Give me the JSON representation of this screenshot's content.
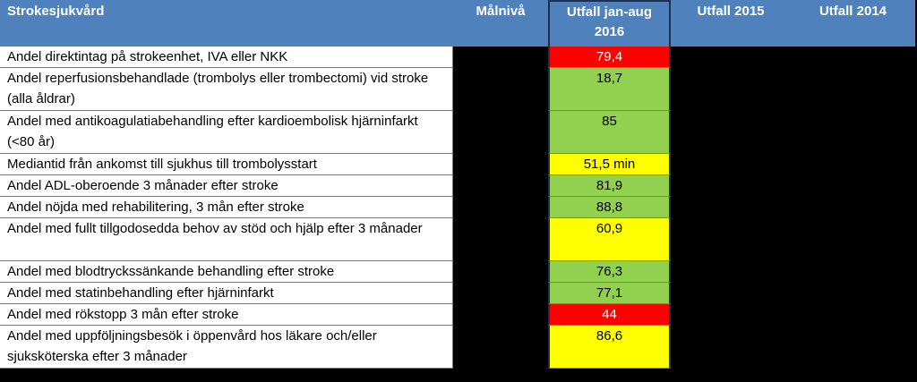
{
  "header": {
    "col_label": "Strokesjukvård",
    "col_target": "Målnivå",
    "col_current_line1": "Utfall jan-aug",
    "col_current_line2": "2016",
    "col_2015": "Utfall 2015",
    "col_2014": "Utfall 2014"
  },
  "status_colors": {
    "red": "#ff0000",
    "green": "#92d050",
    "yellow": "#ffff00",
    "header": "#4f81bd"
  },
  "rows": [
    {
      "label": "Andel direktintag på strokeenhet, IVA eller NKK",
      "value": "79,4",
      "status": "red"
    },
    {
      "label": "Andel reperfusionsbehandlade  (trombolys eller trombectomi) vid stroke (alla åldrar)",
      "value": "18,7",
      "status": "green"
    },
    {
      "label": "Andel med antikoagulatiabehandling efter kardioembolisk hjärninfarkt (<80 år)",
      "value": "85",
      "status": "green"
    },
    {
      "label": "Mediantid från ankomst till sjukhus till trombolysstart",
      "value": "51,5 min",
      "status": "yellow"
    },
    {
      "label": "Andel ADL-oberoende 3 månader efter stroke",
      "value": "81,9",
      "status": "green"
    },
    {
      "label": "Andel nöjda med rehabilitering, 3 mån efter stroke",
      "value": "88,8",
      "status": "green"
    },
    {
      "label": "Andel med fullt tillgodosedda behov av stöd och hjälp efter 3 månader",
      "value": "60,9",
      "status": "yellow"
    },
    {
      "label": "Andel med blodtryckssänkande behandling efter stroke",
      "value": "76,3",
      "status": "green"
    },
    {
      "label": "Andel med statinbehandling efter hjärninfarkt",
      "value": "77,1",
      "status": "green"
    },
    {
      "label": "Andel med rökstopp 3 mån efter stroke",
      "value": "44",
      "status": "red"
    },
    {
      "label": "Andel med uppföljningsbesök  i öppenvård hos läkare och/eller sjuksköterska efter 3 månader",
      "value": "86,6",
      "status": "yellow"
    }
  ]
}
